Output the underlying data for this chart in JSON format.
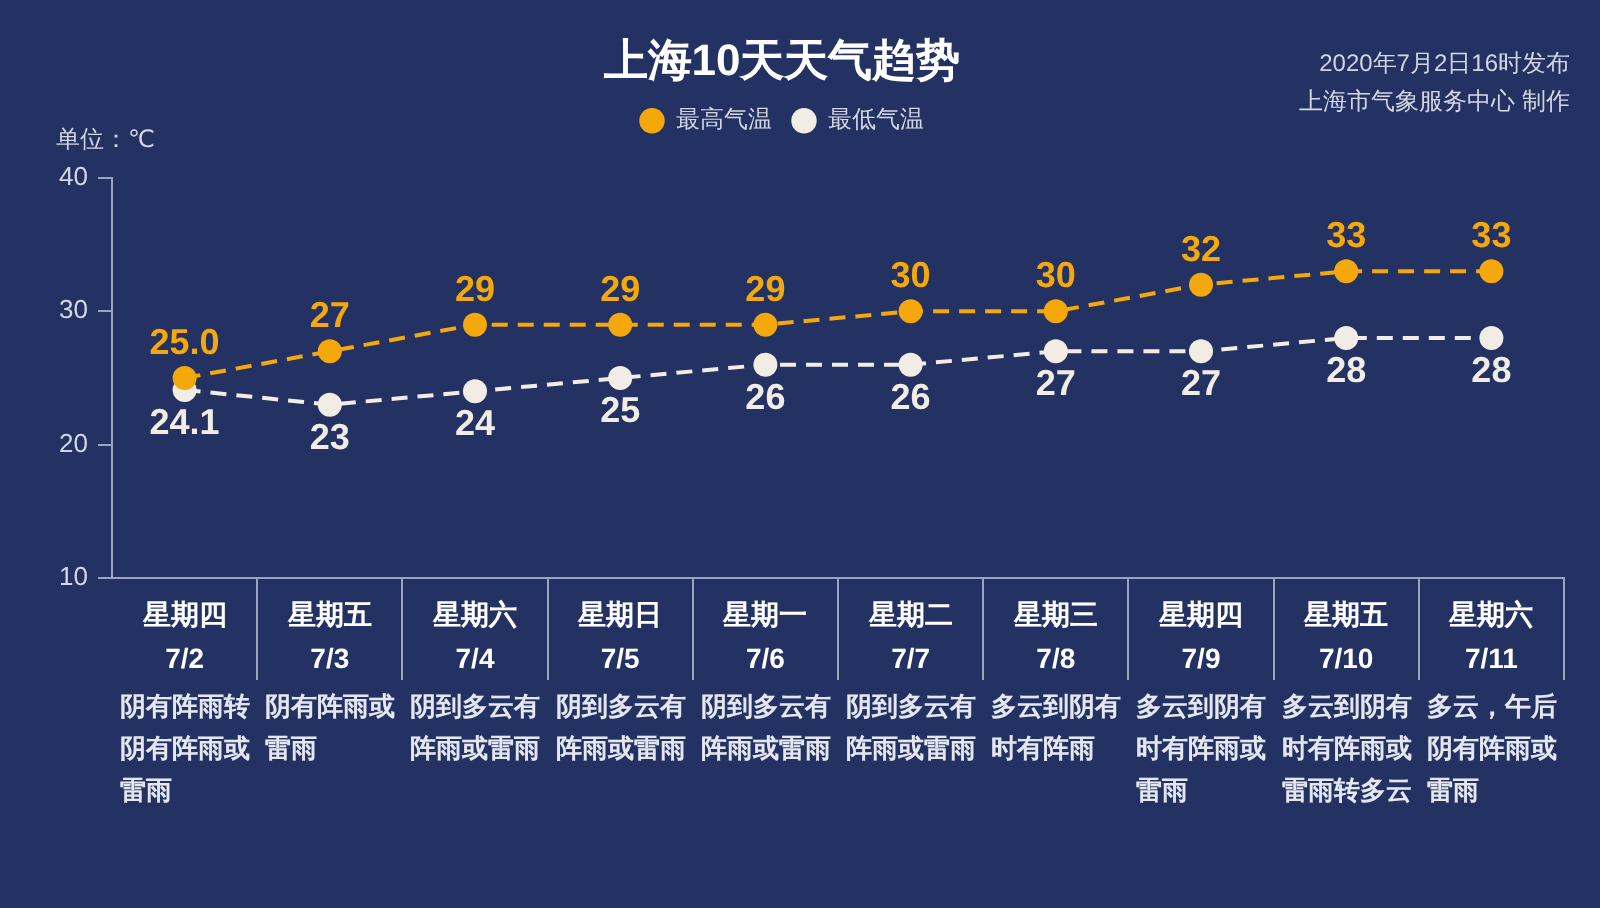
{
  "chart_data": {
    "type": "line",
    "title": "上海10天天气趋势",
    "ylabel": "单位：℃",
    "categories": [
      "星期四\n7/2",
      "星期五\n7/3",
      "星期六\n7/4",
      "星期日\n7/5",
      "星期一\n7/6",
      "星期二\n7/7",
      "星期三\n7/8",
      "星期四\n7/9",
      "星期五\n7/10",
      "星期六\n7/11"
    ],
    "series": [
      {
        "name": "最高气温",
        "color": "#f5a80c",
        "values": [
          25.0,
          27,
          29,
          29,
          29,
          30,
          30,
          32,
          33,
          33
        ],
        "value_labels": [
          "25.0",
          "27",
          "29",
          "29",
          "29",
          "30",
          "30",
          "32",
          "33",
          "33"
        ]
      },
      {
        "name": "最低气温",
        "color": "#f2ede4",
        "values": [
          24.1,
          23,
          24,
          25,
          26,
          26,
          27,
          27,
          28,
          28
        ],
        "value_labels": [
          "24.1",
          "23",
          "24",
          "25",
          "26",
          "26",
          "27",
          "27",
          "28",
          "28"
        ]
      }
    ],
    "ylim": [
      10,
      40
    ],
    "yticks": [
      10,
      20,
      30,
      40
    ],
    "legend": "top",
    "marker": "circle",
    "line_style": "dashed",
    "annotations": [
      "2020年7月2日16时发布",
      "上海市气象服务中心 制作",
      "阴有阵雨转阴有阵雨或雷雨",
      "阴有阵雨或雷雨",
      "阴到多云有阵雨或雷雨",
      "阴到多云有阵雨或雷雨",
      "阴到多云有阵雨或雷雨",
      "阴到多云有阵雨或雷雨",
      "多云到阴有时有阵雨",
      "多云到阴有时有阵雨或雷雨",
      "多云到阴有时有阵雨或雷雨转多云",
      "多云，午后阴有阵雨或雷雨"
    ]
  }
}
